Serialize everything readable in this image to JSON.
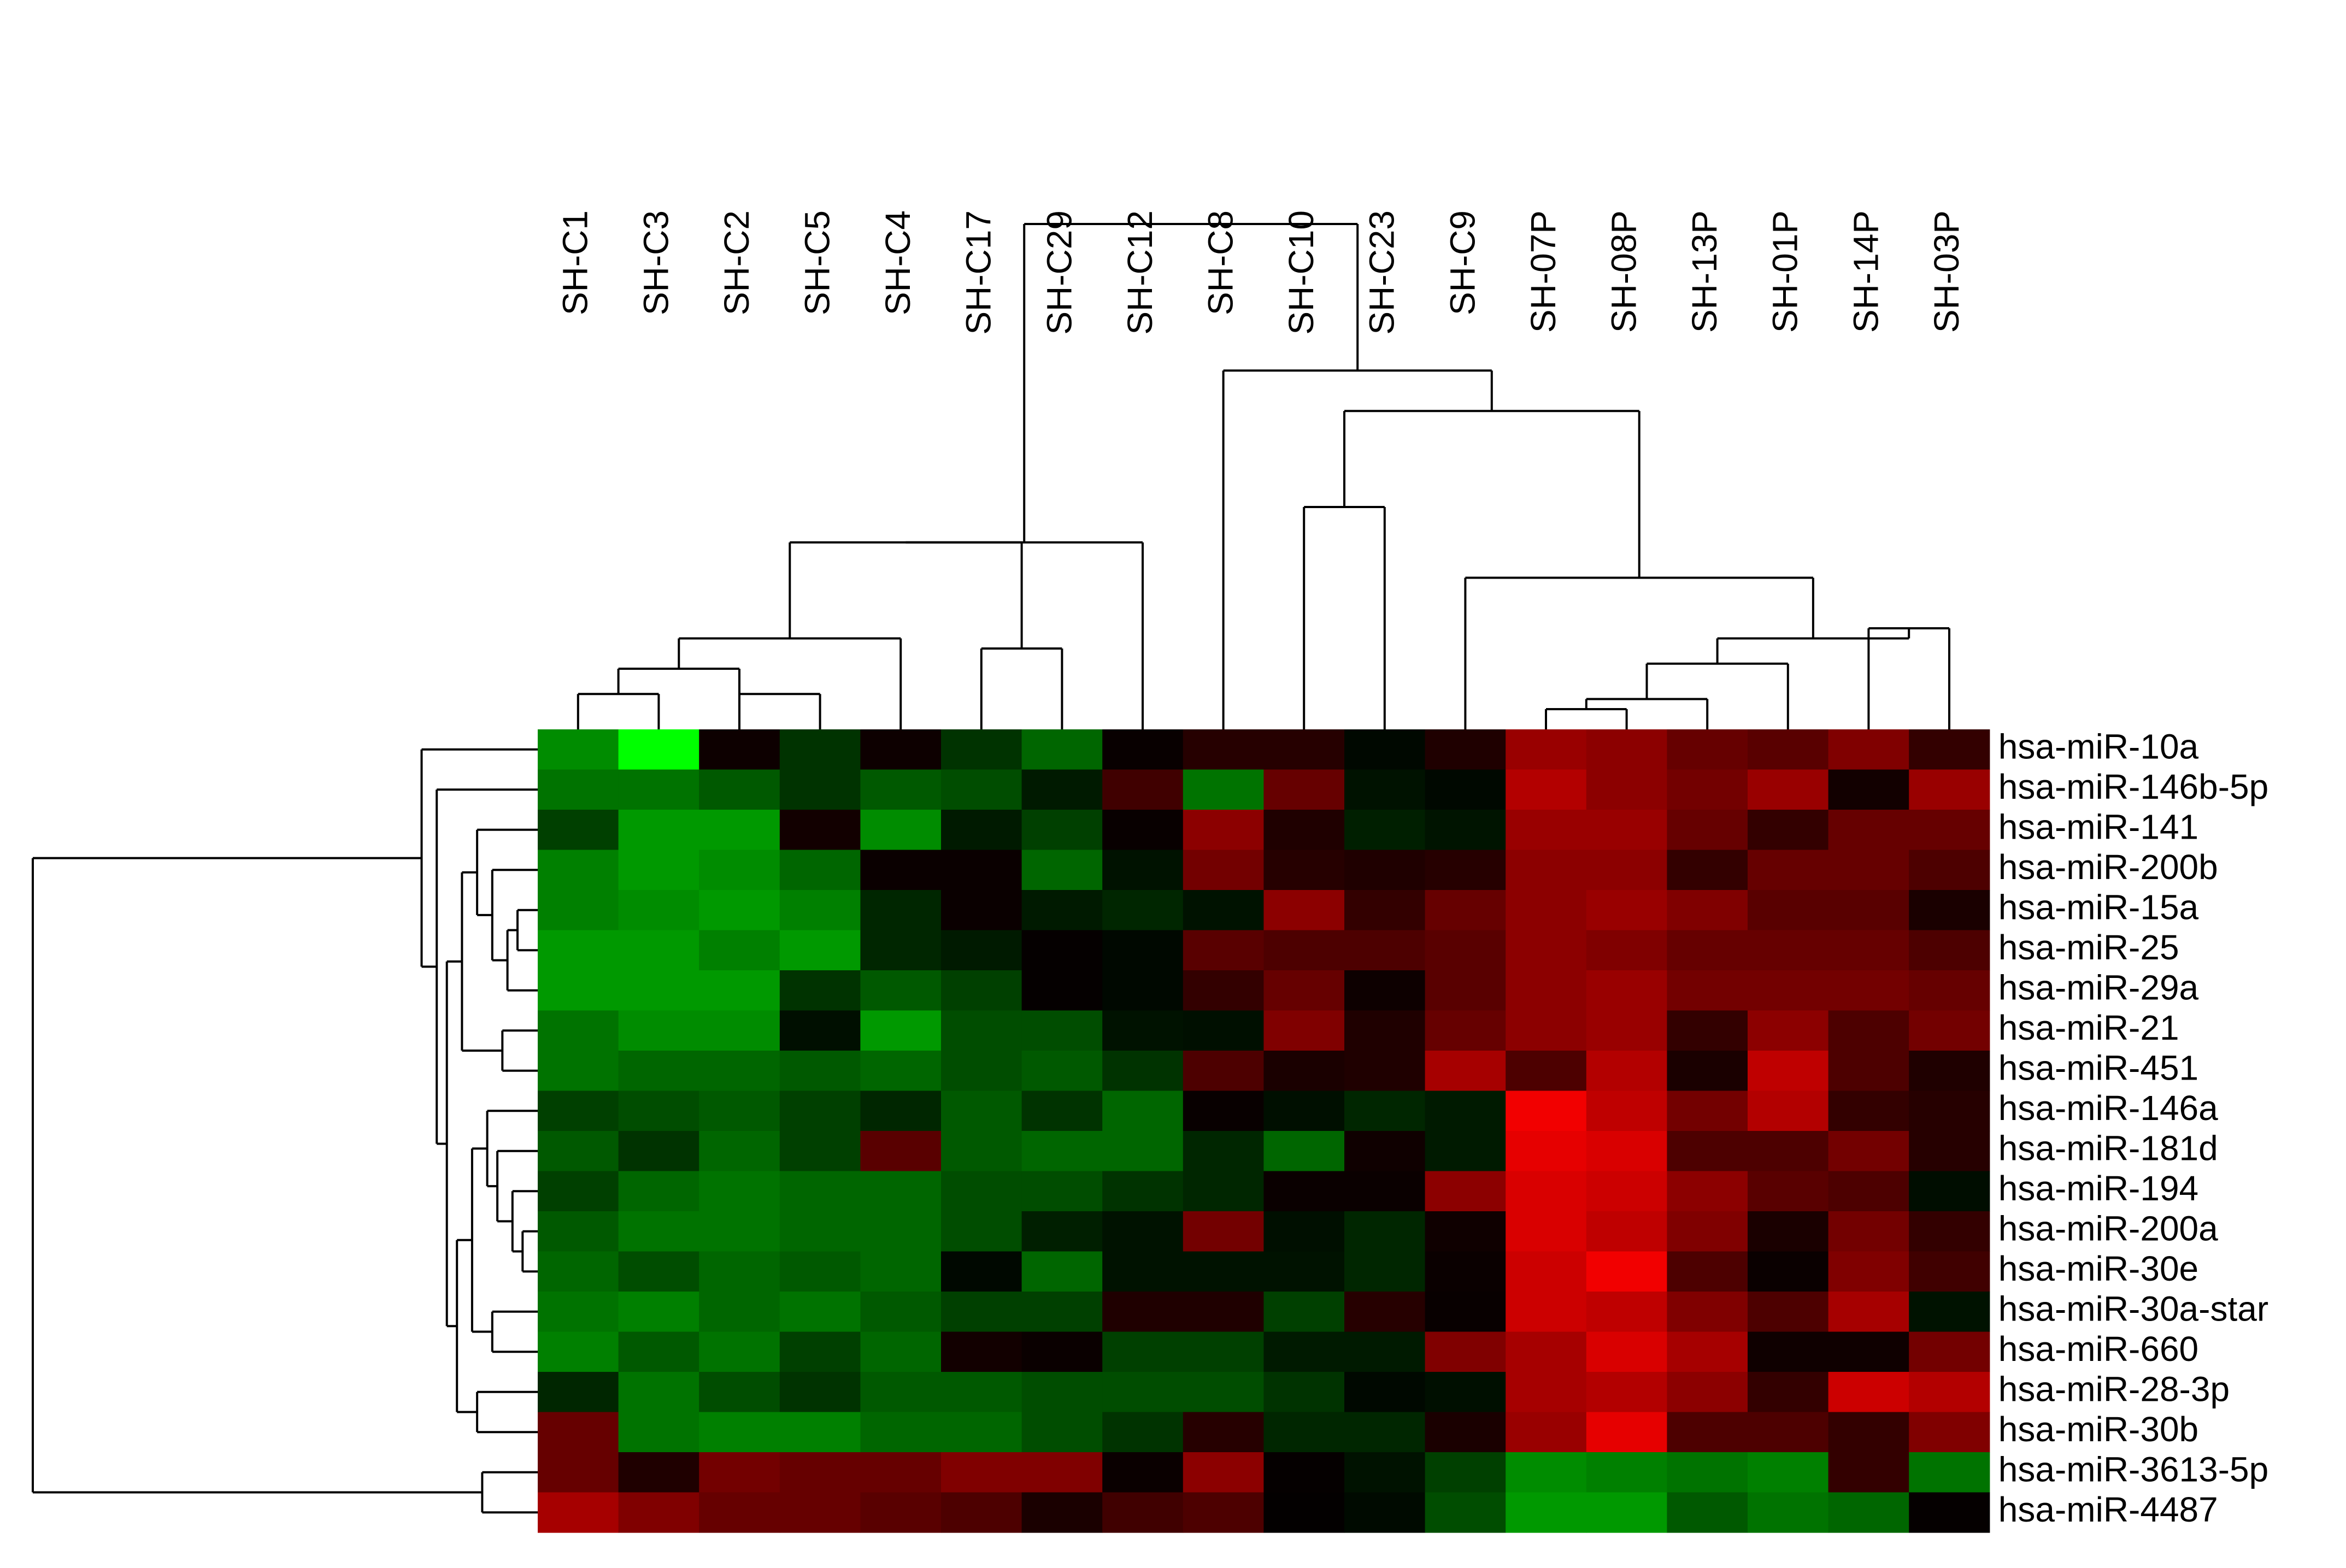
{
  "chart_data": {
    "type": "heatmap",
    "title": "",
    "color_scale": {
      "low": "#00ff00",
      "mid": "#000000",
      "high": "#ff0000",
      "range": [
        -1,
        1
      ]
    },
    "columns": [
      "SH-C1",
      "SH-C3",
      "SH-C2",
      "SH-C5",
      "SH-C4",
      "SH-C17",
      "SH-C29",
      "SH-C12",
      "SH-C8",
      "SH-C10",
      "SH-C23",
      "SH-C9",
      "SH-07P",
      "SH-08P",
      "SH-13P",
      "SH-01P",
      "SH-14P",
      "SH-03P"
    ],
    "rows": [
      "hsa-miR-10a",
      "hsa-miR-146b-5p",
      "hsa-miR-141",
      "hsa-miR-200b",
      "hsa-miR-15a",
      "hsa-miR-25",
      "hsa-miR-29a",
      "hsa-miR-21",
      "hsa-miR-451",
      "hsa-miR-146a",
      "hsa-miR-181d",
      "hsa-miR-194",
      "hsa-miR-200a",
      "hsa-miR-30e",
      "hsa-miR-30a-star",
      "hsa-miR-660",
      "hsa-miR-28-3p",
      "hsa-miR-30b",
      "hsa-miR-3613-5p",
      "hsa-miR-4487"
    ],
    "values": [
      [
        -0.55,
        -1.0,
        0.05,
        -0.2,
        0.05,
        -0.2,
        -0.4,
        0.03,
        0.15,
        0.15,
        -0.03,
        0.12,
        0.6,
        0.55,
        0.4,
        0.35,
        0.5,
        0.2
      ],
      [
        -0.45,
        -0.45,
        -0.35,
        -0.2,
        -0.35,
        -0.3,
        -0.1,
        0.25,
        -0.45,
        0.4,
        -0.07,
        -0.03,
        0.7,
        0.55,
        0.45,
        0.6,
        0.07,
        0.6
      ],
      [
        -0.25,
        -0.6,
        -0.6,
        0.07,
        -0.55,
        -0.1,
        -0.25,
        0.03,
        0.55,
        0.12,
        -0.12,
        -0.08,
        0.6,
        0.6,
        0.4,
        0.2,
        0.4,
        0.4
      ],
      [
        -0.5,
        -0.6,
        -0.55,
        -0.4,
        0.04,
        0.04,
        -0.4,
        -0.07,
        0.45,
        0.15,
        0.12,
        0.15,
        0.55,
        0.55,
        0.2,
        0.4,
        0.4,
        0.3
      ],
      [
        -0.5,
        -0.55,
        -0.6,
        -0.5,
        -0.15,
        0.04,
        -0.1,
        -0.15,
        -0.07,
        0.55,
        0.2,
        0.4,
        0.55,
        0.6,
        0.5,
        0.35,
        0.35,
        0.1
      ],
      [
        -0.6,
        -0.6,
        -0.5,
        -0.6,
        -0.15,
        -0.1,
        0.02,
        -0.03,
        0.35,
        0.3,
        0.3,
        0.35,
        0.55,
        0.5,
        0.4,
        0.4,
        0.4,
        0.3
      ],
      [
        -0.6,
        -0.6,
        -0.6,
        -0.2,
        -0.35,
        -0.25,
        0.02,
        -0.03,
        0.2,
        0.4,
        0.05,
        0.35,
        0.55,
        0.6,
        0.45,
        0.45,
        0.45,
        0.4
      ],
      [
        -0.45,
        -0.55,
        -0.55,
        -0.06,
        -0.6,
        -0.3,
        -0.3,
        -0.07,
        -0.06,
        0.5,
        0.12,
        0.4,
        0.55,
        0.6,
        0.2,
        0.55,
        0.3,
        0.45
      ],
      [
        -0.45,
        -0.4,
        -0.4,
        -0.35,
        -0.4,
        -0.3,
        -0.35,
        -0.2,
        0.3,
        0.1,
        0.12,
        0.65,
        0.3,
        0.7,
        0.1,
        0.75,
        0.3,
        0.12
      ],
      [
        -0.25,
        -0.3,
        -0.35,
        -0.25,
        -0.15,
        -0.35,
        -0.2,
        -0.4,
        0.03,
        -0.06,
        -0.15,
        -0.1,
        0.95,
        0.75,
        0.45,
        0.7,
        0.2,
        0.15
      ],
      [
        -0.35,
        -0.2,
        -0.4,
        -0.25,
        0.35,
        -0.35,
        -0.4,
        -0.4,
        -0.15,
        -0.4,
        0.06,
        -0.1,
        0.9,
        0.85,
        0.3,
        0.3,
        0.45,
        0.15
      ],
      [
        -0.25,
        -0.4,
        -0.45,
        -0.4,
        -0.4,
        -0.3,
        -0.3,
        -0.2,
        -0.15,
        0.04,
        0.04,
        0.55,
        0.85,
        0.8,
        0.55,
        0.35,
        0.3,
        -0.05
      ],
      [
        -0.35,
        -0.45,
        -0.45,
        -0.4,
        -0.4,
        -0.3,
        -0.12,
        -0.07,
        0.45,
        -0.06,
        -0.15,
        0.06,
        0.85,
        0.75,
        0.5,
        0.1,
        0.45,
        0.2
      ],
      [
        -0.4,
        -0.3,
        -0.4,
        -0.35,
        -0.4,
        -0.03,
        -0.4,
        -0.07,
        -0.07,
        -0.07,
        -0.15,
        0.04,
        0.8,
        0.95,
        0.3,
        0.04,
        0.5,
        0.25
      ],
      [
        -0.45,
        -0.5,
        -0.4,
        -0.45,
        -0.35,
        -0.25,
        -0.25,
        0.12,
        0.12,
        -0.25,
        0.15,
        0.03,
        0.8,
        0.75,
        0.5,
        0.3,
        0.65,
        -0.07
      ],
      [
        -0.5,
        -0.35,
        -0.45,
        -0.25,
        -0.4,
        0.07,
        0.04,
        -0.25,
        -0.25,
        -0.1,
        -0.1,
        0.5,
        0.65,
        0.85,
        0.65,
        0.06,
        0.06,
        0.45
      ],
      [
        -0.15,
        -0.45,
        -0.3,
        -0.2,
        -0.35,
        -0.35,
        -0.3,
        -0.3,
        -0.3,
        -0.2,
        -0.03,
        -0.06,
        0.65,
        0.7,
        0.55,
        0.2,
        0.8,
        0.7
      ],
      [
        0.4,
        -0.45,
        -0.5,
        -0.5,
        -0.4,
        -0.4,
        -0.3,
        -0.2,
        0.15,
        -0.15,
        -0.15,
        0.1,
        0.6,
        0.9,
        0.3,
        0.3,
        0.2,
        0.5
      ],
      [
        0.4,
        0.12,
        0.45,
        0.4,
        0.4,
        0.5,
        0.5,
        0.04,
        0.55,
        0.02,
        -0.07,
        -0.25,
        -0.55,
        -0.5,
        -0.45,
        -0.5,
        0.2,
        -0.45
      ],
      [
        0.65,
        0.5,
        0.4,
        0.4,
        0.35,
        0.3,
        0.1,
        0.25,
        0.3,
        0.01,
        -0.04,
        -0.3,
        -0.6,
        -0.6,
        -0.35,
        -0.45,
        -0.4,
        0.02
      ]
    ],
    "column_dendrogram": {
      "order": [
        0,
        1,
        2,
        3,
        4,
        5,
        6,
        7,
        8,
        9,
        10,
        11,
        12,
        13,
        14,
        15,
        16,
        17
      ],
      "merges": [
        {
          "children": [
            12,
            13
          ],
          "height": 0.04
        },
        {
          "children": [
            18,
            14
          ],
          "height": 0.06
        },
        {
          "children": [
            19,
            15
          ],
          "height": 0.13
        },
        {
          "children": [
            16,
            17
          ],
          "height": 0.2
        },
        {
          "children": [
            20,
            21
          ],
          "height": 0.18
        },
        {
          "children": [
            0,
            1
          ],
          "height": 0.07
        },
        {
          "children": [
            23,
            2
          ],
          "height": 0.12
        },
        {
          "children": [
            2,
            3
          ],
          "height": 0.07
        },
        {
          "children": [
            9,
            10
          ],
          "height": 0.44
        },
        {
          "children": [
            11,
            22
          ],
          "height": 0.3
        },
        {
          "children": [
            26,
            27
          ],
          "height": 0.63
        },
        {
          "children": [
            8,
            28
          ],
          "height": 0.71
        },
        {
          "children": [
            5,
            6
          ],
          "height": 0.16
        },
        {
          "children": [
            24,
            4
          ],
          "height": 0.18
        },
        {
          "children": [
            31,
            30
          ],
          "height": 0.37
        },
        {
          "children": [
            32,
            7
          ],
          "height": 0.37
        },
        {
          "children": [
            33,
            29
          ],
          "height": 1.0
        }
      ]
    },
    "row_dendrogram": {
      "order": [
        0,
        1,
        2,
        3,
        4,
        5,
        6,
        7,
        8,
        9,
        10,
        11,
        12,
        13,
        14,
        15,
        16,
        17,
        18,
        19
      ],
      "leaf_heights": {
        "main_split": 1.0
      }
    }
  }
}
